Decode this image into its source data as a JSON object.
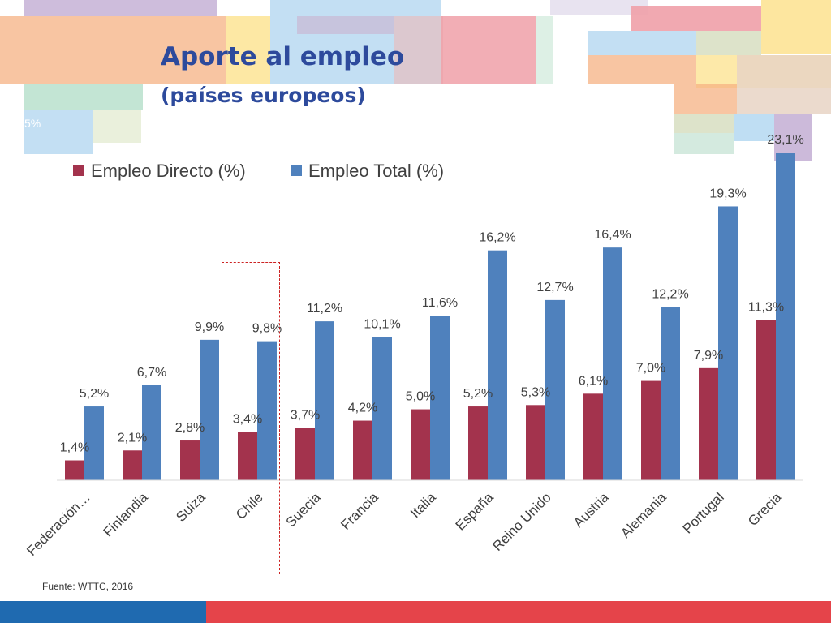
{
  "slide": {
    "title": "Aporte al empleo",
    "subtitle": "(países europeos)",
    "source": "Fuente: WTTC, 2016",
    "fragment_text": "5%"
  },
  "colors": {
    "directo": "#a3334d",
    "total": "#4f81bd",
    "title": "#2d4a9c",
    "footer_blue": "#1f6ab0",
    "footer_red": "#e5444a",
    "highlight_border": "#cc2222"
  },
  "chart_data": {
    "type": "bar",
    "categories": [
      "Federación…",
      "Finlandia",
      "Suiza",
      "Chile",
      "Suecia",
      "Francia",
      "Italia",
      "España",
      "Reino Unido",
      "Austria",
      "Alemania",
      "Portugal",
      "Grecia"
    ],
    "series": [
      {
        "name": "Empleo Directo (%)",
        "values": [
          1.4,
          2.1,
          2.8,
          3.4,
          3.7,
          4.2,
          5.0,
          5.2,
          5.3,
          6.1,
          7.0,
          7.9,
          11.3
        ],
        "labels": [
          "1,4%",
          "2,1%",
          "2,8%",
          "3,4%",
          "3,7%",
          "4,2%",
          "5,0%",
          "5,2%",
          "5,3%",
          "6,1%",
          "7,0%",
          "7,9%",
          "11,3%"
        ]
      },
      {
        "name": "Empleo Total (%)",
        "values": [
          5.2,
          6.7,
          9.9,
          9.8,
          11.2,
          10.1,
          11.6,
          16.2,
          12.7,
          16.4,
          12.2,
          19.3,
          23.1
        ],
        "labels": [
          "5,2%",
          "6,7%",
          "9,9%",
          "9,8%",
          "11,2%",
          "10,1%",
          "11,6%",
          "16,2%",
          "12,7%",
          "16,4%",
          "12,2%",
          "19,3%",
          "23,1%"
        ]
      }
    ],
    "highlighted_category": "Chile",
    "legend_position": "top-left",
    "grid": false,
    "ylim": [
      0,
      23.1
    ]
  }
}
